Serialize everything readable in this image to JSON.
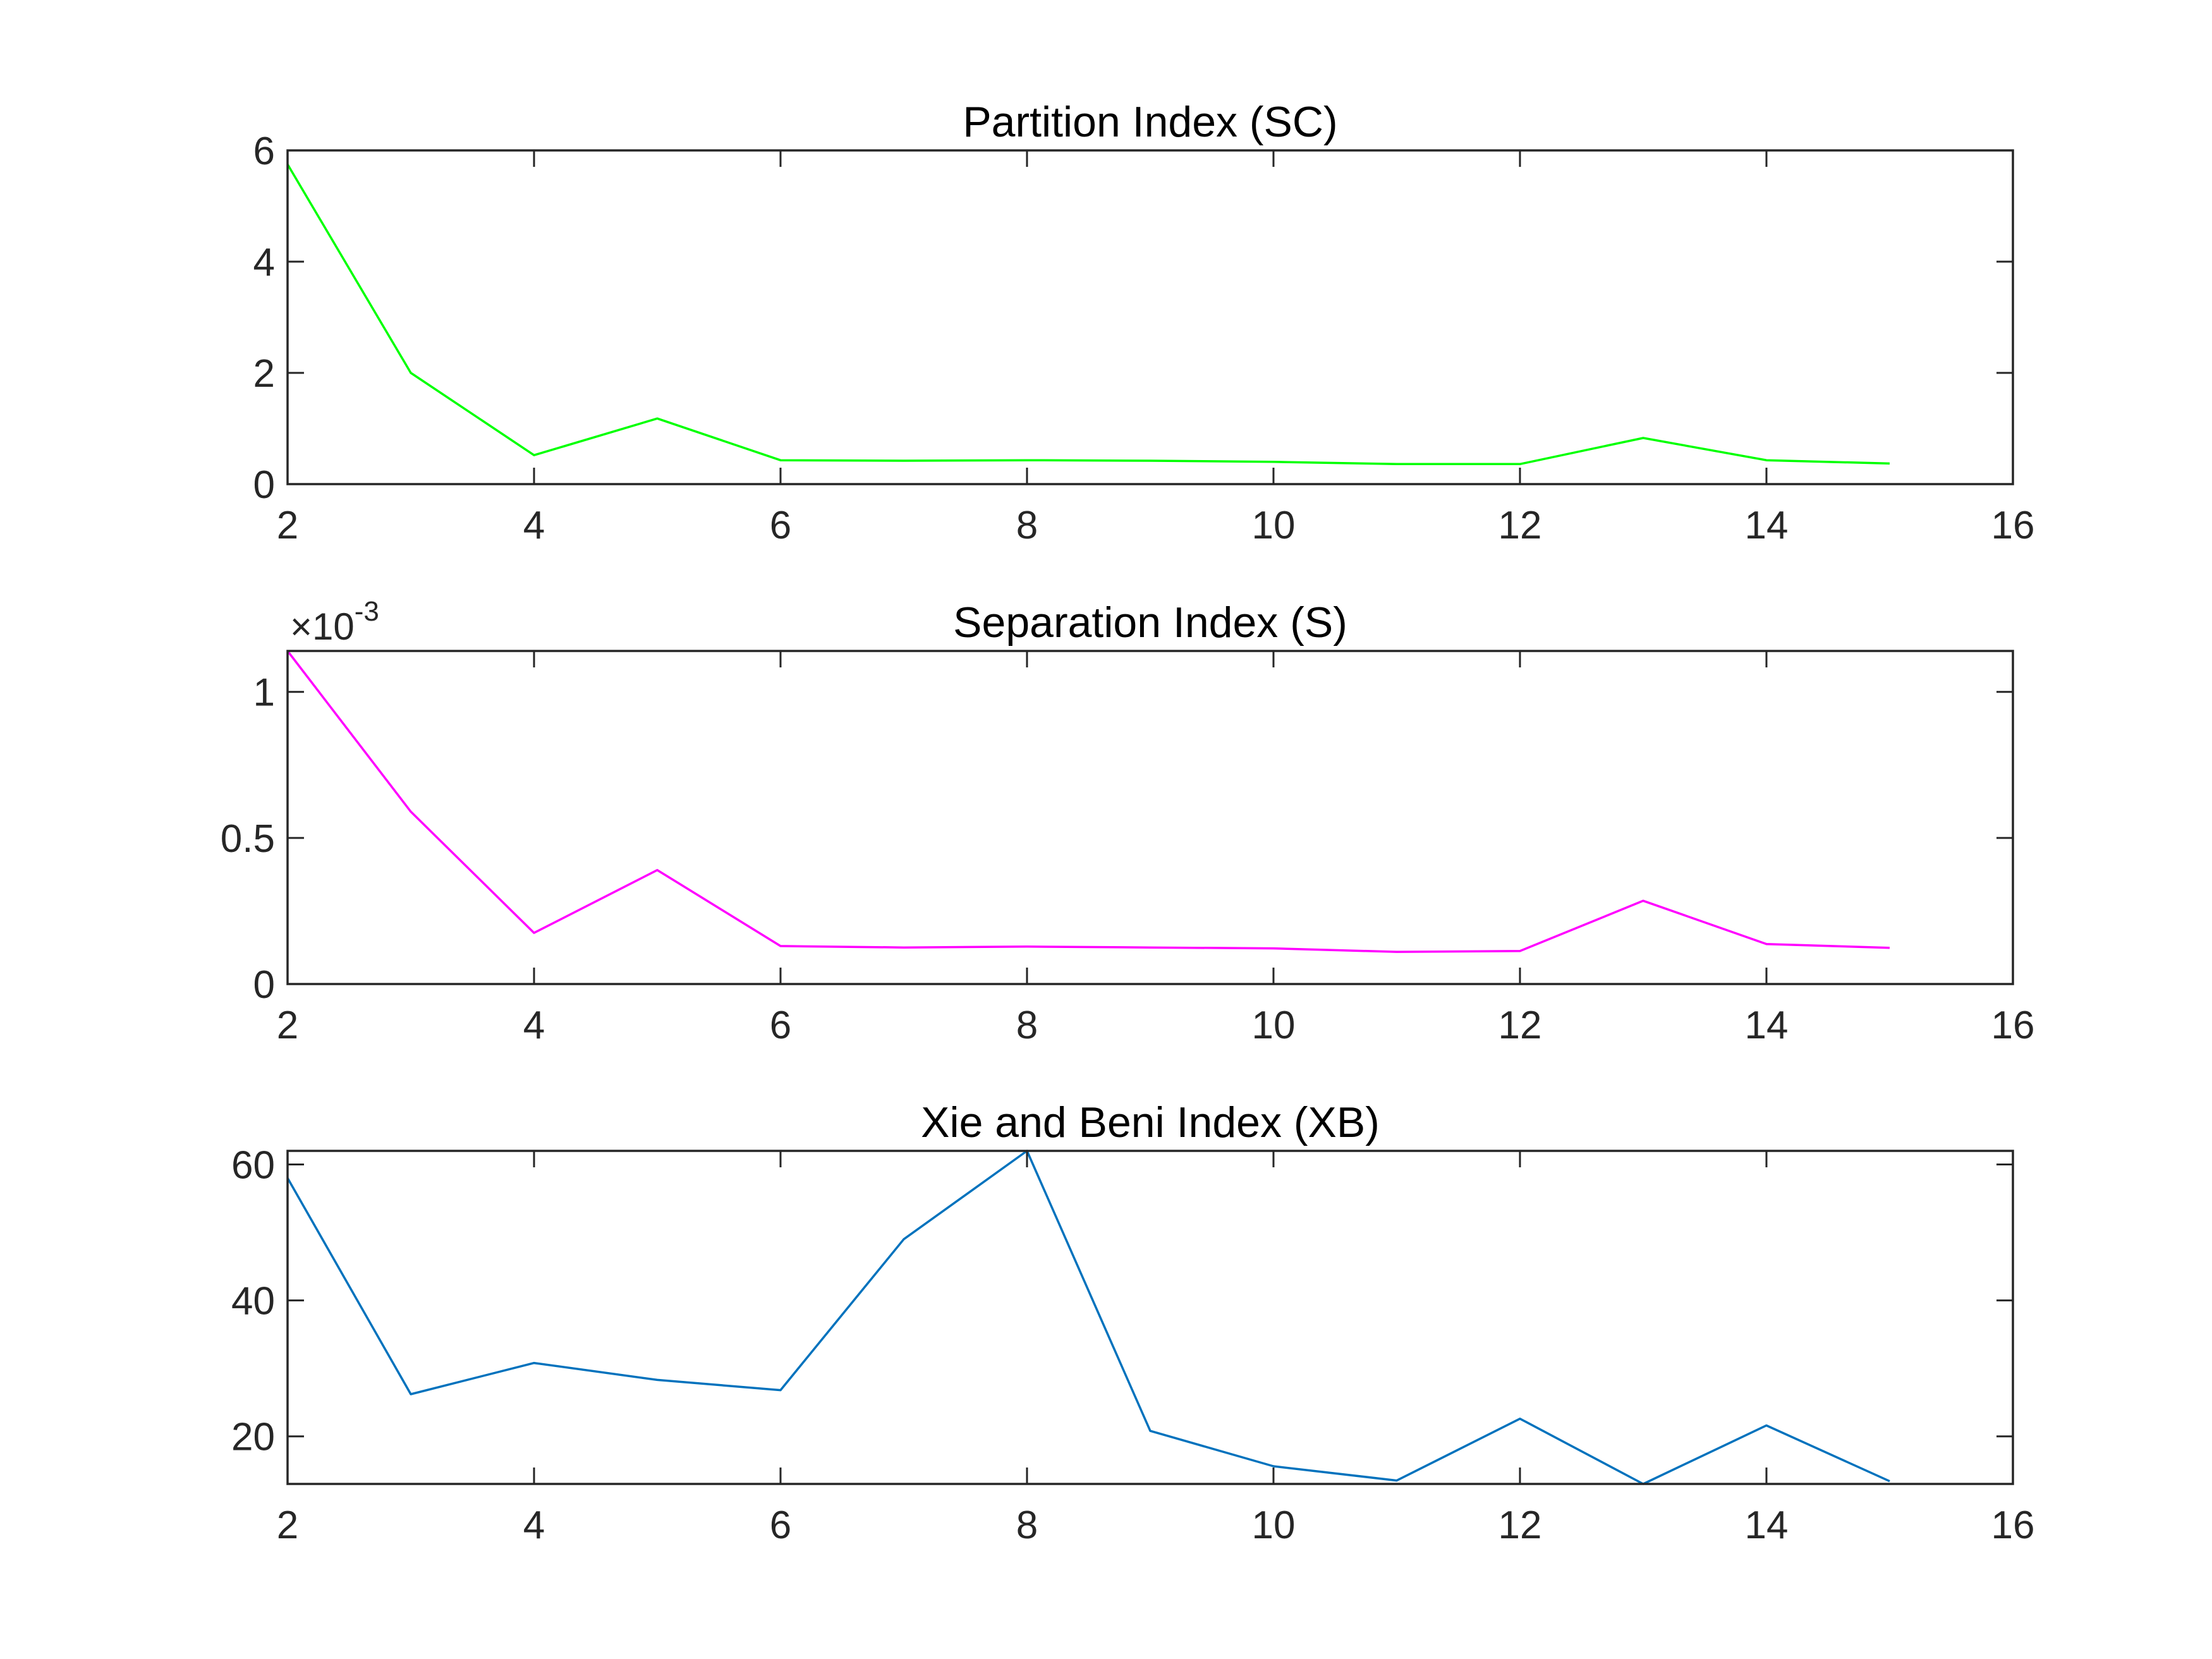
{
  "chart_data": [
    {
      "type": "line",
      "title": "Partition Index (SC)",
      "xlabel": "",
      "ylabel": "",
      "xlim": [
        2,
        16
      ],
      "ylim": [
        0,
        6
      ],
      "xticks": [
        "2",
        "4",
        "6",
        "8",
        "10",
        "12",
        "14",
        "16"
      ],
      "yticks": [
        "0",
        "2",
        "4",
        "6"
      ],
      "exponent_label": "",
      "grid": false,
      "color": "#00ff00",
      "x": [
        2,
        3,
        4,
        5,
        6,
        7,
        8,
        9,
        10,
        11,
        12,
        13,
        14,
        15
      ],
      "y": [
        5.75,
        2.0,
        0.52,
        1.18,
        0.43,
        0.42,
        0.43,
        0.42,
        0.4,
        0.36,
        0.36,
        0.83,
        0.43,
        0.37
      ]
    },
    {
      "type": "line",
      "title": "Separation Index (S)",
      "xlabel": "",
      "ylabel": "",
      "xlim": [
        2,
        16
      ],
      "ylim": [
        0,
        0.00114
      ],
      "xticks": [
        "2",
        "4",
        "6",
        "8",
        "10",
        "12",
        "14",
        "16"
      ],
      "yticks": [
        "0",
        "0.5",
        "1"
      ],
      "exponent_label": "×10",
      "exponent_power": "-3",
      "grid": false,
      "color": "#ff00ff",
      "x": [
        2,
        3,
        4,
        5,
        6,
        7,
        8,
        9,
        10,
        11,
        12,
        13,
        14,
        15
      ],
      "y": [
        0.00114,
        0.00059,
        0.000175,
        0.00039,
        0.00013,
        0.000125,
        0.000128,
        0.000125,
        0.000122,
        0.00011,
        0.000113,
        0.000285,
        0.000137,
        0.000124
      ]
    },
    {
      "type": "line",
      "title": "Xie and Beni Index (XB)",
      "xlabel": "",
      "ylabel": "",
      "xlim": [
        2,
        16
      ],
      "ylim": [
        13,
        62
      ],
      "xticks": [
        "2",
        "4",
        "6",
        "8",
        "10",
        "12",
        "14",
        "16"
      ],
      "yticks": [
        "20",
        "40",
        "60"
      ],
      "exponent_label": "",
      "grid": false,
      "color": "#0072bd",
      "x": [
        2,
        3,
        4,
        5,
        6,
        7,
        8,
        9,
        10,
        11,
        12,
        13,
        14,
        15
      ],
      "y": [
        58.0,
        26.2,
        30.8,
        28.3,
        26.8,
        49.0,
        62.0,
        20.8,
        15.6,
        13.5,
        22.6,
        13.0,
        21.6,
        13.4
      ]
    }
  ]
}
